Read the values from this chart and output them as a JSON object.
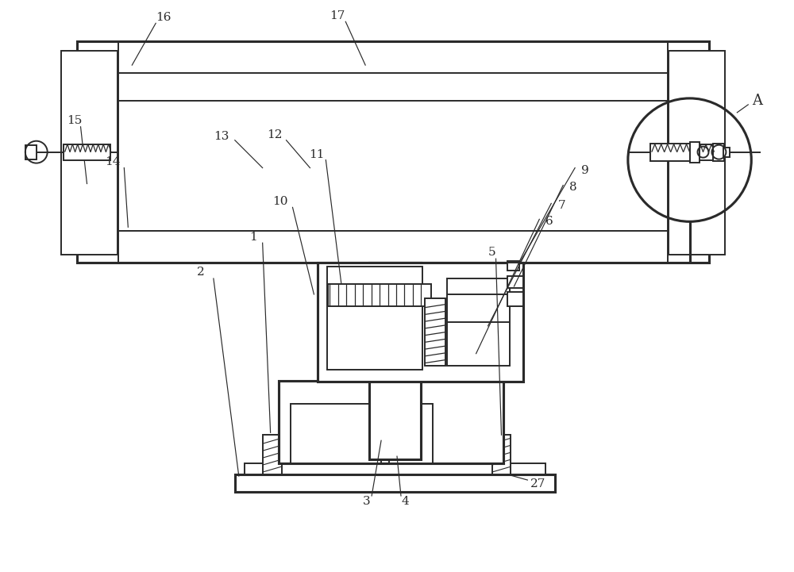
{
  "bg_color": "#ffffff",
  "line_color": "#2a2a2a",
  "lw": 1.4,
  "figsize": [
    10.0,
    7.21
  ],
  "dpi": 100
}
